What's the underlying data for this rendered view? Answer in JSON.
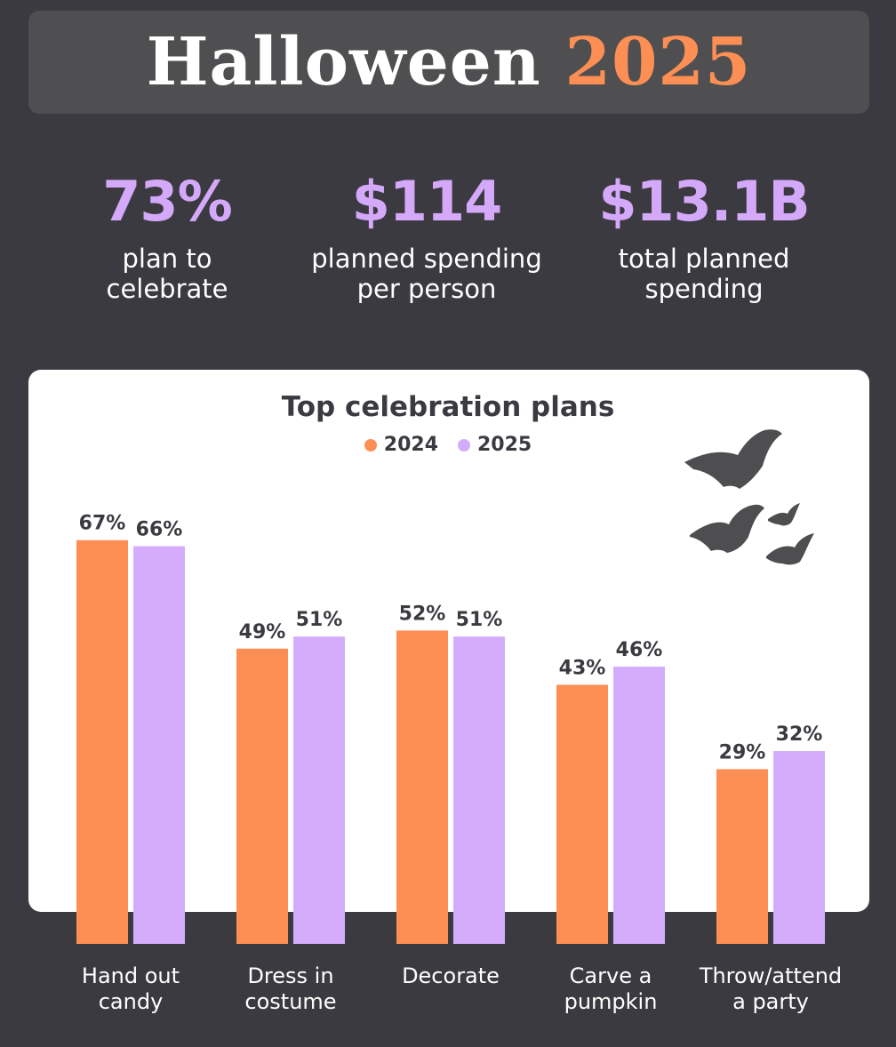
{
  "header": {
    "title_word": "Halloween",
    "title_year": "2025"
  },
  "stats": [
    {
      "value": "73%",
      "label_line1": "plan to",
      "label_line2": "celebrate"
    },
    {
      "value": "$114",
      "label_line1": "planned spending",
      "label_line2": "per person"
    },
    {
      "value": "$13.1B",
      "label_line1": "total planned",
      "label_line2": "spending"
    }
  ],
  "chart_data": {
    "type": "bar",
    "title": "Top celebration plans",
    "categories": [
      [
        "Hand out",
        "candy"
      ],
      [
        "Dress in",
        "costume"
      ],
      [
        "Decorate"
      ],
      [
        "Carve a",
        "pumpkin"
      ],
      [
        "Throw/attend",
        "a party"
      ]
    ],
    "series": [
      {
        "name": "2024",
        "color": "#fd8f55",
        "values": [
          67,
          49,
          52,
          43,
          29
        ]
      },
      {
        "name": "2025",
        "color": "#d5acfb",
        "values": [
          66,
          51,
          51,
          46,
          32
        ]
      }
    ],
    "value_suffix": "%",
    "ylim": [
      0,
      70
    ],
    "legend": "top-center",
    "grid": false
  },
  "decoration": {
    "icon": "bats-icon",
    "color": "#4e4e50"
  }
}
